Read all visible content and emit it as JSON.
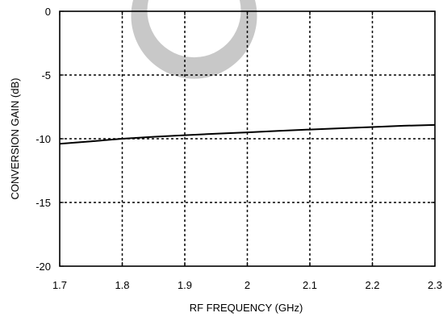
{
  "chart_data": {
    "type": "line",
    "title": "",
    "xlabel": "RF FREQUENCY (GHz)",
    "ylabel": "CONVERSION GAIN (dB)",
    "xlim": [
      1.7,
      2.3
    ],
    "ylim": [
      -20,
      0
    ],
    "x_ticks": [
      1.7,
      1.8,
      1.9,
      2.0,
      2.1,
      2.2,
      2.3
    ],
    "x_tick_labels": [
      "1.7",
      "1.8",
      "1.9",
      "2",
      "2.1",
      "2.2",
      "2.3"
    ],
    "y_ticks": [
      0,
      -5,
      -10,
      -15,
      -20
    ],
    "y_tick_labels": [
      "0",
      "-5",
      "-10",
      "-15",
      "-20"
    ],
    "grid": true,
    "grid_style": "dashed",
    "series": [
      {
        "color": "#000000",
        "x": [
          1.7,
          1.75,
          1.8,
          1.85,
          1.9,
          1.95,
          2.0,
          2.05,
          2.1,
          2.15,
          2.2,
          2.25,
          2.3
        ],
        "y": [
          -10.4,
          -10.2,
          -10.0,
          -9.85,
          -9.72,
          -9.6,
          -9.5,
          -9.38,
          -9.28,
          -9.18,
          -9.08,
          -8.98,
          -8.92
        ]
      }
    ],
    "watermark": {
      "shape": "ring",
      "color": "#c8c8c8"
    }
  }
}
